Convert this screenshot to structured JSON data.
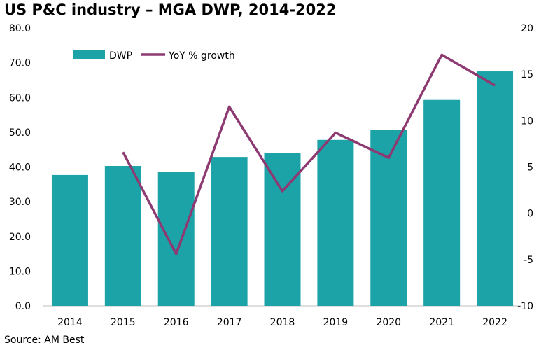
{
  "chart_data": {
    "type": "bar+line",
    "title": "US P&C industry – MGA DWP, 2014-2022",
    "source": "Source: AM Best",
    "categories": [
      "2014",
      "2015",
      "2016",
      "2017",
      "2018",
      "2019",
      "2020",
      "2021",
      "2022"
    ],
    "series": [
      {
        "name": "DWP",
        "type": "bar",
        "axis": "left",
        "color": "#1ba3a8",
        "values": [
          37.7,
          40.3,
          38.5,
          42.9,
          44.0,
          47.8,
          50.6,
          59.3,
          67.5
        ]
      },
      {
        "name": "YoY % growth",
        "type": "line",
        "axis": "right",
        "color": "#8e3a72",
        "values": [
          null,
          6.6,
          -4.4,
          11.5,
          2.4,
          8.7,
          6.0,
          17.1,
          13.8
        ]
      }
    ],
    "y_left": {
      "ylim": [
        0,
        80
      ],
      "ticks": [
        "0.0",
        "10.0",
        "20.0",
        "30.0",
        "40.0",
        "50.0",
        "60.0",
        "70.0",
        "80.0"
      ]
    },
    "y_right": {
      "ylim": [
        -10,
        20
      ],
      "ticks": [
        "-10",
        "-5",
        "0",
        "5",
        "10",
        "15",
        "20"
      ]
    },
    "grid": false,
    "legend": "top-left"
  }
}
